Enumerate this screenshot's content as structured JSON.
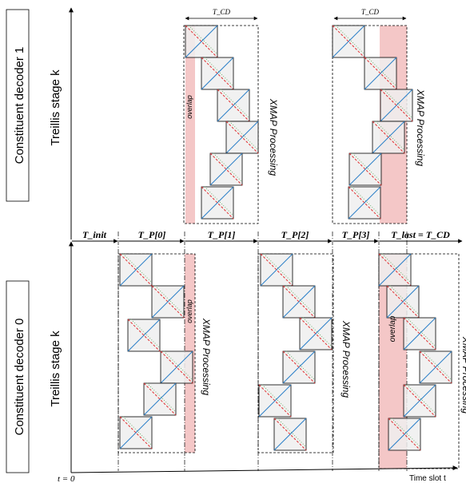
{
  "decoders": {
    "top": {
      "name": "Constituent decoder 1",
      "axis_label": "Treillis stage k"
    },
    "bottom": {
      "name": "Constituent decoder 0",
      "axis_label": "Treillis stage k"
    }
  },
  "time_axis": {
    "origin_label": "t = 0",
    "label": "Time slot t"
  },
  "periods": [
    {
      "label": "T_init"
    },
    {
      "label": "T_P[0]"
    },
    {
      "label": "T_P[1]"
    },
    {
      "label": "T_P[2]"
    },
    {
      "label": "T_P[3]"
    },
    {
      "label": "T_last = T_CD"
    }
  ],
  "tcd_label": "T_CD",
  "xmap_label": "XMAP Processing",
  "overlap_label": "overlap",
  "colors": {
    "overlap_fill": "#f4c7c7",
    "block_fill": "#eeeeee",
    "red_dashed": "#e03030",
    "blue_line": "#2a7fc8",
    "green_dotted": "#6fb46f"
  }
}
